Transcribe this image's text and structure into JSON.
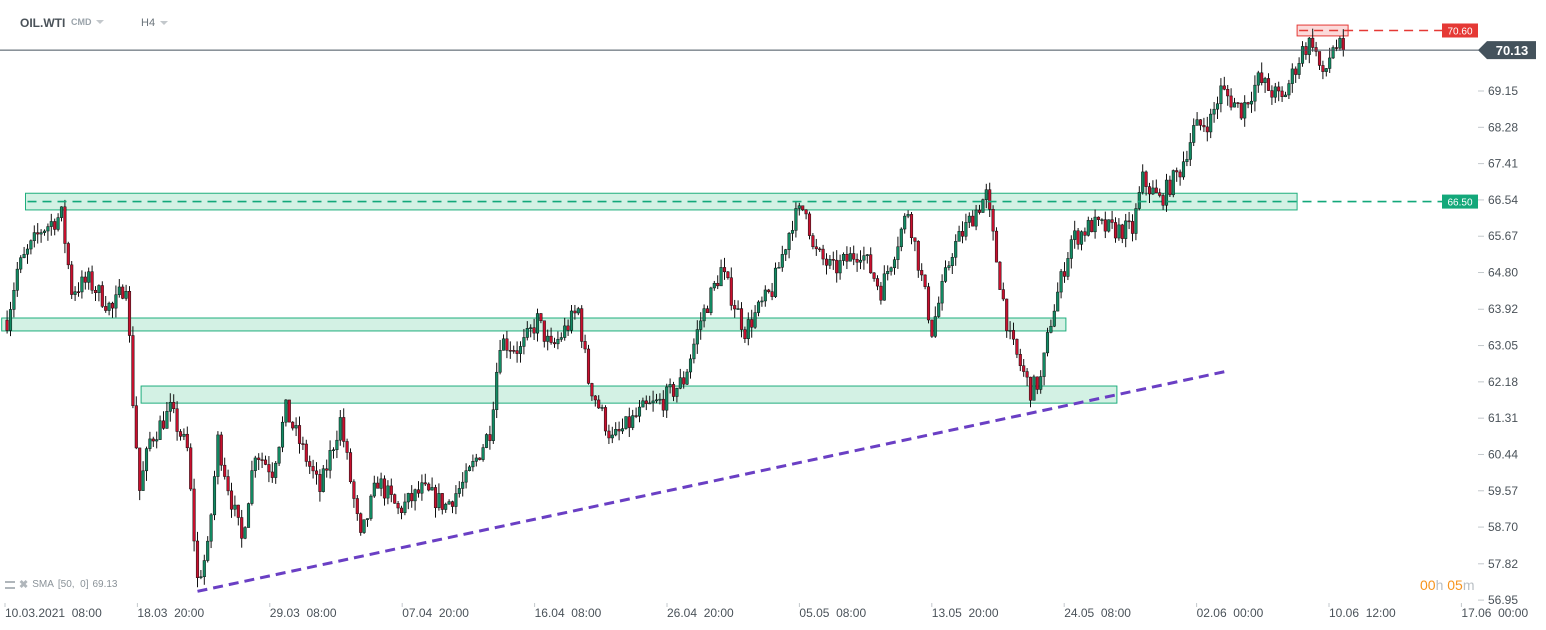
{
  "toolbar": {
    "symbol": "OIL.WTI",
    "instrument_type": "CMD",
    "timeframe": "H4"
  },
  "indicator": {
    "label": "SMA",
    "params": "[50,  0]",
    "value": "69.13",
    "icons": [
      "list-icon",
      "close-icon"
    ]
  },
  "candle_timer": {
    "hours": "00",
    "hours_unit": "h",
    "minutes": "05",
    "minutes_unit": "m"
  },
  "colors": {
    "bull": "#128a63",
    "bear": "#c8102e",
    "zone_fill": "#d3f1e4",
    "zone_border": "#1fae7d",
    "support_line": "#13a87a",
    "resistance_line": "#e53935",
    "trendline": "#6a3fc4",
    "price_tag": "#44525c"
  },
  "chart_data": {
    "type": "candlestick",
    "instrument": "OIL.WTI",
    "timeframe": "H4",
    "y_ticks": [
      "69.15",
      "68.28",
      "67.41",
      "66.54",
      "65.67",
      "64.80",
      "63.92",
      "63.05",
      "62.18",
      "61.31",
      "60.44",
      "59.57",
      "58.70",
      "57.82",
      "56.95"
    ],
    "ylim": [
      56.95,
      70.6
    ],
    "x_ticks": [
      "10.03.2021  08:00",
      "18.03  20:00",
      "29.03  08:00",
      "07.04  20:00",
      "16.04  08:00",
      "26.04  20:00",
      "05.05  08:00",
      "13.05  20:00",
      "24.05  08:00",
      "02.06  00:00",
      "10.06  12:00",
      "17.06  00:00"
    ],
    "price_path_by_bar": [
      [
        1,
        63.66
      ],
      [
        4,
        64.86
      ],
      [
        11,
        65.82
      ],
      [
        17,
        66.17
      ],
      [
        20,
        64.38
      ],
      [
        25,
        64.6
      ],
      [
        32,
        63.9
      ],
      [
        36,
        64.6
      ],
      [
        38,
        61.74
      ],
      [
        40,
        59.58
      ],
      [
        43,
        60.78
      ],
      [
        49,
        61.5
      ],
      [
        54,
        60.54
      ],
      [
        57,
        57.42
      ],
      [
        60,
        58.14
      ],
      [
        63,
        60.78
      ],
      [
        67,
        59.34
      ],
      [
        70,
        58.38
      ],
      [
        74,
        60.54
      ],
      [
        79,
        60.06
      ],
      [
        83,
        61.5
      ],
      [
        88,
        60.54
      ],
      [
        93,
        59.58
      ],
      [
        99,
        61.26
      ],
      [
        105,
        58.38
      ],
      [
        110,
        59.82
      ],
      [
        116,
        59.1
      ],
      [
        123,
        59.58
      ],
      [
        130,
        59.22
      ],
      [
        136,
        59.82
      ],
      [
        143,
        61.02
      ],
      [
        146,
        63.18
      ],
      [
        152,
        62.94
      ],
      [
        157,
        63.66
      ],
      [
        161,
        62.94
      ],
      [
        169,
        63.9
      ],
      [
        172,
        62.22
      ],
      [
        179,
        60.78
      ],
      [
        188,
        61.5
      ],
      [
        194,
        61.74
      ],
      [
        200,
        62.22
      ],
      [
        205,
        63.66
      ],
      [
        211,
        64.86
      ],
      [
        218,
        63.42
      ],
      [
        226,
        64.38
      ],
      [
        232,
        66.05
      ],
      [
        236,
        66.41
      ],
      [
        238,
        65.34
      ],
      [
        244,
        64.86
      ],
      [
        252,
        65.34
      ],
      [
        258,
        64.38
      ],
      [
        266,
        66.29
      ],
      [
        273,
        63.42
      ],
      [
        279,
        65.34
      ],
      [
        286,
        66.29
      ],
      [
        289,
        66.65
      ],
      [
        293,
        64.6
      ],
      [
        296,
        63.18
      ],
      [
        302,
        61.98
      ],
      [
        305,
        62.22
      ],
      [
        308,
        63.66
      ],
      [
        314,
        65.58
      ],
      [
        320,
        65.94
      ],
      [
        326,
        65.82
      ],
      [
        332,
        65.82
      ],
      [
        335,
        67.02
      ],
      [
        340,
        66.53
      ],
      [
        346,
        67.26
      ],
      [
        350,
        68.22
      ],
      [
        355,
        68.46
      ],
      [
        358,
        69.17
      ],
      [
        364,
        68.7
      ],
      [
        369,
        69.41
      ],
      [
        376,
        68.93
      ],
      [
        382,
        70.13
      ],
      [
        385,
        70.37
      ],
      [
        388,
        69.41
      ],
      [
        391,
        70.25
      ],
      [
        394,
        70.13
      ]
    ],
    "last_price": "70.13",
    "horizontal_lines": [
      {
        "price": 66.5,
        "label": "66.50",
        "style": "dashed",
        "color": "green"
      },
      {
        "price": 70.6,
        "label": "70.60",
        "style": "dashed",
        "color": "red"
      }
    ],
    "zones": [
      {
        "from_bar": 7,
        "to_bar": 381,
        "low": 66.3,
        "high": 66.7
      },
      {
        "from_bar": 0,
        "to_bar": 313,
        "low": 63.4,
        "high": 63.71
      },
      {
        "from_bar": 41,
        "to_bar": 328,
        "low": 61.67,
        "high": 62.08
      },
      {
        "from_bar": 381,
        "to_bar": 396,
        "low": 70.47,
        "high": 70.73,
        "color": "red"
      }
    ],
    "trendline": {
      "from": [
        57,
        57.16
      ],
      "to": [
        360,
        62.44
      ],
      "style": "dashed"
    }
  }
}
